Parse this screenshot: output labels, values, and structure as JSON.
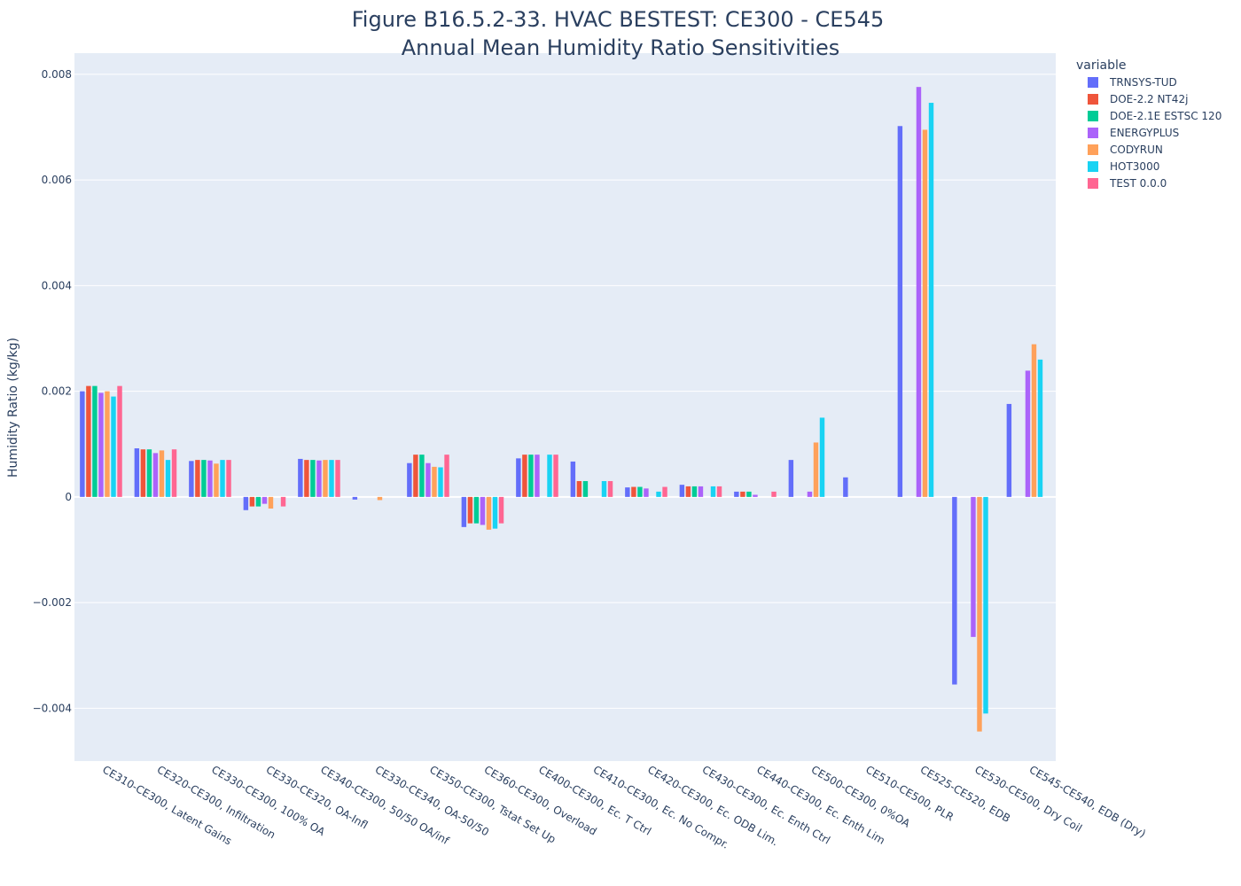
{
  "chart_data": {
    "type": "bar",
    "title": "Figure B16.5.2-33. HVAC BESTEST: CE300 - CE545",
    "subtitle": "Annual Mean Humidity Ratio Sensitivities",
    "xlabel": "",
    "ylabel": "Humidity Ratio (kg/kg)",
    "ylim": [
      -0.005,
      0.0084
    ],
    "yticks": [
      -0.004,
      -0.002,
      0,
      0.002,
      0.004,
      0.006,
      0.008
    ],
    "ytick_labels": [
      "−0.004",
      "−0.002",
      "0",
      "0.002",
      "0.004",
      "0.006",
      "0.008"
    ],
    "grid": true,
    "legend_title": "variable",
    "legend_position": "top-right",
    "categories": [
      "CE310-CE300, Latent Gains",
      "CE320-CE300, Infiltration",
      "CE330-CE300, 100% OA",
      "CE330-CE320, OA-Infl",
      "CE340-CE300, 50/50 OA/inf",
      "CE330-CE340, OA-50/50",
      "CE350-CE300, Tstat Set Up",
      "CE360-CE300, Overload",
      "CE400-CE300, Ec. T Ctrl",
      "CE410-CE300, Ec. No Compr.",
      "CE420-CE300, Ec. ODB Lim.",
      "CE430-CE300, Ec. Enth Ctrl",
      "CE440-CE300, Ec. Enth Lim",
      "CE500-CE300, 0%OA",
      "CE510-CE500, PLR",
      "CE525-CE520, EDB",
      "CE530-CE500, Dry Coil",
      "CE545-CE540, EDB (Dry)"
    ],
    "series": [
      {
        "name": "TRNSYS-TUD",
        "color": "#636efa",
        "values": [
          0.002,
          0.00092,
          0.00068,
          -0.00025,
          0.00072,
          -5e-05,
          0.00064,
          -0.00057,
          0.00073,
          0.00067,
          0.00018,
          0.00023,
          0.0001,
          0.0007,
          0.00037,
          0.00702,
          -0.00355,
          0.00176
        ]
      },
      {
        "name": "DOE-2.2 NT42j",
        "color": "#EF553B",
        "values": [
          0.0021,
          0.0009,
          0.0007,
          -0.00018,
          0.0007,
          null,
          0.0008,
          -0.0005,
          0.0008,
          0.0003,
          0.00019,
          0.0002,
          0.0001,
          null,
          null,
          null,
          null,
          null
        ]
      },
      {
        "name": "DOE-2.1E ESTSC 120",
        "color": "#00cc96",
        "values": [
          0.0021,
          0.0009,
          0.0007,
          -0.00018,
          0.0007,
          null,
          0.0008,
          -0.0005,
          0.0008,
          0.0003,
          0.00019,
          0.0002,
          0.0001,
          null,
          null,
          null,
          null,
          null
        ]
      },
      {
        "name": "ENERGYPLUS",
        "color": "#ab63fa",
        "values": [
          0.00197,
          0.00083,
          0.00069,
          -0.00013,
          0.00069,
          null,
          0.00064,
          -0.00053,
          0.0008,
          null,
          0.00016,
          0.0002,
          4e-05,
          0.0001,
          null,
          0.00776,
          -0.00265,
          0.00239
        ]
      },
      {
        "name": "CODYRUN",
        "color": "#FFA15A",
        "values": [
          0.002,
          0.00088,
          0.00063,
          -0.00022,
          0.0007,
          -6e-05,
          0.00057,
          -0.00062,
          null,
          null,
          null,
          null,
          null,
          0.00103,
          null,
          0.00695,
          -0.00444,
          0.00289
        ]
      },
      {
        "name": "HOT3000",
        "color": "#19d3f3",
        "values": [
          0.0019,
          0.0007,
          0.0007,
          null,
          0.0007,
          null,
          0.00056,
          -0.0006,
          0.0008,
          0.0003,
          0.0001,
          0.0002,
          null,
          0.0015,
          null,
          0.00746,
          -0.0041,
          0.0026
        ]
      },
      {
        "name": "TEST 0.0.0",
        "color": "#FF6692",
        "values": [
          0.0021,
          0.0009,
          0.0007,
          -0.00018,
          0.0007,
          null,
          0.0008,
          -0.0005,
          0.0008,
          0.0003,
          0.00019,
          0.0002,
          0.0001,
          null,
          null,
          null,
          null,
          null
        ]
      }
    ]
  }
}
